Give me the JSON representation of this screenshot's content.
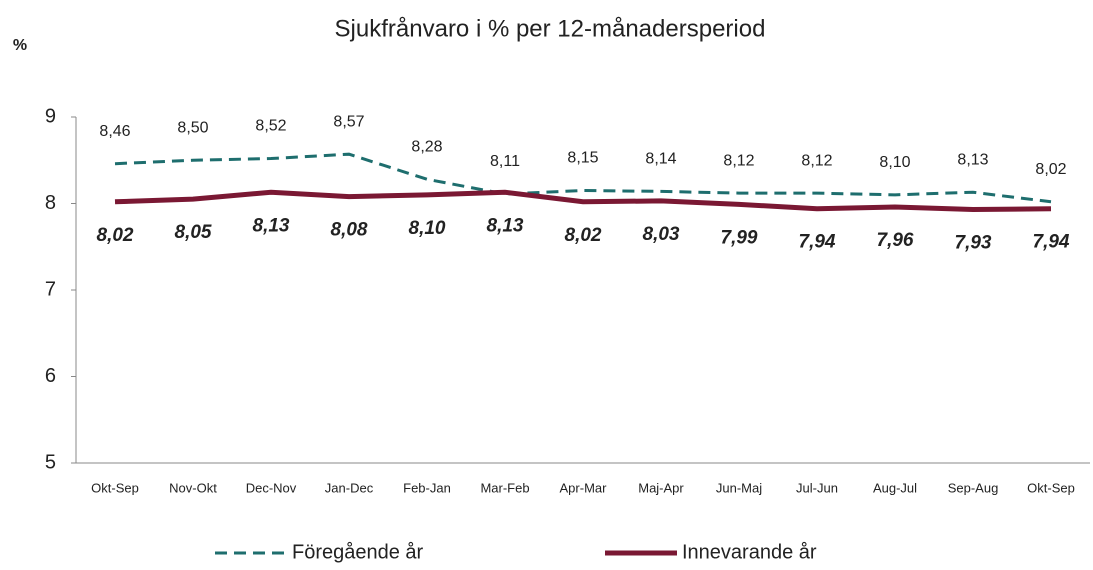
{
  "chart_data": {
    "type": "line",
    "title": "Sjukfrånvaro i % per 12-månadersperiod",
    "y_label": "%",
    "categories": [
      "Okt-Sep",
      "Nov-Okt",
      "Dec-Nov",
      "Jan-Dec",
      "Feb-Jan",
      "Mar-Feb",
      "Apr-Mar",
      "Maj-Apr",
      "Jun-Maj",
      "Jul-Jun",
      "Aug-Jul",
      "Sep-Aug",
      "Okt-Sep"
    ],
    "series": [
      {
        "name": "Föregående år",
        "color": "#1e6e6e",
        "dashed": true,
        "values": [
          8.46,
          8.5,
          8.52,
          8.57,
          8.28,
          8.11,
          8.15,
          8.14,
          8.12,
          8.12,
          8.1,
          8.13,
          8.02
        ],
        "value_labels": [
          "8,46",
          "8,50",
          "8,52",
          "8,57",
          "8,28",
          "8,11",
          "8,15",
          "8,14",
          "8,12",
          "8,12",
          "8,10",
          "8,13",
          "8,02"
        ]
      },
      {
        "name": "Innevarande år",
        "color": "#7a1833",
        "dashed": false,
        "values": [
          8.02,
          8.05,
          8.13,
          8.08,
          8.1,
          8.13,
          8.02,
          8.03,
          7.99,
          7.94,
          7.96,
          7.93,
          7.94
        ],
        "value_labels": [
          "8,02",
          "8,05",
          "8,13",
          "8,08",
          "8,10",
          "8,13",
          "8,02",
          "8,03",
          "7,99",
          "7,94",
          "7,96",
          "7,93",
          "7,94"
        ]
      }
    ],
    "ylim": [
      5,
      9
    ],
    "yticks": [
      5,
      6,
      7,
      8,
      9
    ],
    "grid": false,
    "legend": "bottom"
  }
}
